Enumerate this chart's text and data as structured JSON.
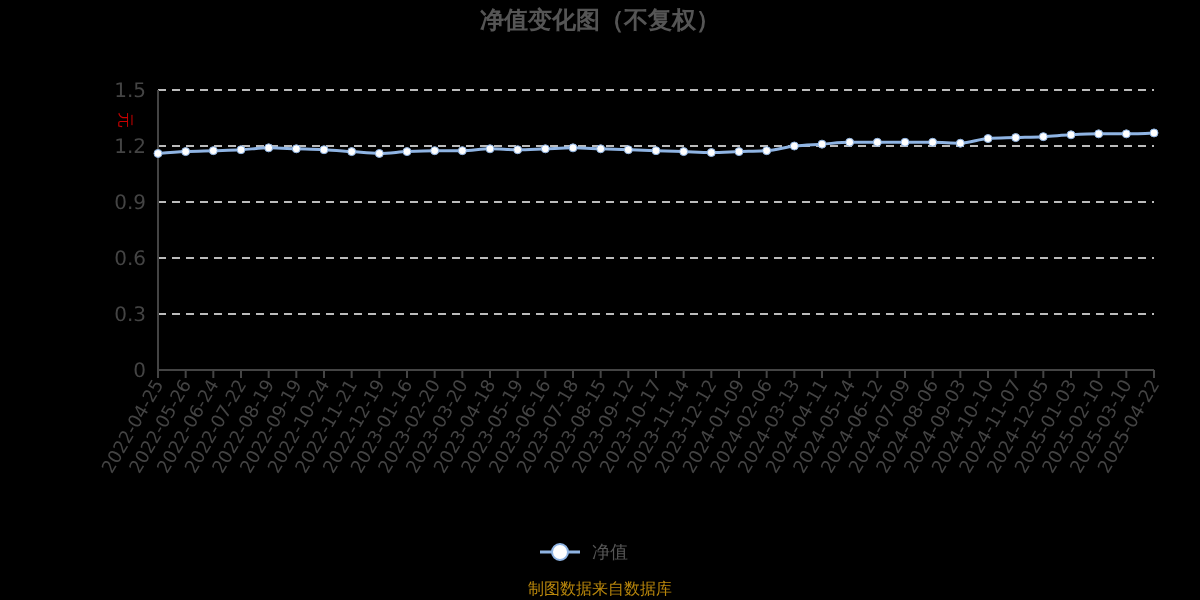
{
  "chart_data": {
    "type": "line",
    "title": "净值变化图（不复权）",
    "ylabel": "元",
    "categories": [
      "2022-04-25",
      "2022-05-26",
      "2022-06-24",
      "2022-07-22",
      "2022-08-19",
      "2022-09-19",
      "2022-10-24",
      "2022-11-21",
      "2022-12-19",
      "2023-01-16",
      "2023-02-20",
      "2023-03-20",
      "2023-04-18",
      "2023-05-19",
      "2023-06-16",
      "2023-07-18",
      "2023-08-15",
      "2023-09-12",
      "2023-10-17",
      "2023-11-14",
      "2023-12-12",
      "2024-01-09",
      "2024-02-06",
      "2024-03-13",
      "2024-04-11",
      "2024-05-14",
      "2024-06-12",
      "2024-07-09",
      "2024-08-06",
      "2024-09-03",
      "2024-10-10",
      "2024-11-07",
      "2024-12-05",
      "2025-01-03",
      "2025-02-10",
      "2025-03-10",
      "2025-04-22"
    ],
    "series": [
      {
        "name": "净值",
        "color": "#8fb4e3",
        "values": [
          1.16,
          1.17,
          1.175,
          1.18,
          1.19,
          1.185,
          1.18,
          1.17,
          1.16,
          1.17,
          1.175,
          1.175,
          1.185,
          1.18,
          1.185,
          1.19,
          1.185,
          1.18,
          1.175,
          1.17,
          1.165,
          1.17,
          1.175,
          1.2,
          1.21,
          1.22,
          1.22,
          1.22,
          1.22,
          1.215,
          1.24,
          1.245,
          1.25,
          1.26,
          1.265,
          1.265,
          1.27
        ]
      }
    ],
    "ylim": [
      0,
      1.5
    ],
    "yticks": [
      0,
      0.3,
      0.6,
      0.9,
      1.2,
      1.5
    ],
    "grid": "y",
    "legend": "bottom",
    "marker": "circle",
    "line_style": "solid",
    "annotations": [
      "制图数据来自数据库"
    ]
  }
}
